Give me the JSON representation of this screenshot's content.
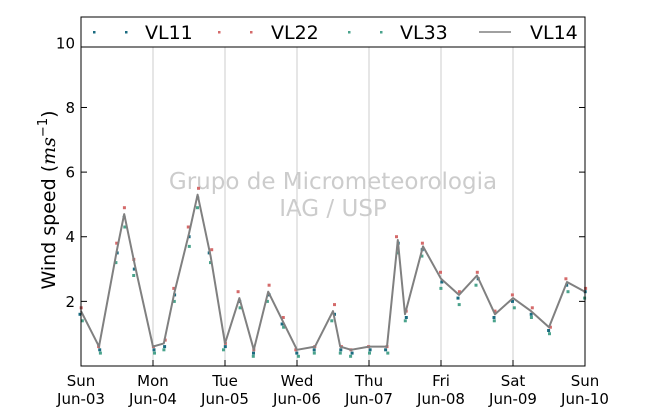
{
  "chart_data": {
    "type": "scatter",
    "title": "",
    "ylabel": "Wind speed (m s⁻¹)",
    "ylabel_text": "Wind speed (",
    "ylabel_unit_base": "ms",
    "ylabel_unit_exp": "−1",
    "ylabel_close": ")",
    "xlabel": "",
    "ylim": [
      0,
      10.8
    ],
    "xlim": [
      0,
      7
    ],
    "yticks": [
      2,
      4,
      6,
      8,
      10
    ],
    "ytick_labels": [
      "2",
      "4",
      "6",
      "8",
      "10"
    ],
    "xticks": [
      0,
      1,
      2,
      3,
      4,
      5,
      6,
      7
    ],
    "xtick_labels": [
      [
        "Sun",
        "Jun-03"
      ],
      [
        "Mon",
        "Jun-04"
      ],
      [
        "Tue",
        "Jun-05"
      ],
      [
        "Wed",
        "Jun-06"
      ],
      [
        "Thu",
        "Jun-07"
      ],
      [
        "Fri",
        "Jun-08"
      ],
      [
        "Sat",
        "Jun-09"
      ],
      [
        "Sun",
        "Jun-10"
      ]
    ],
    "grid": "vertical",
    "legend_position": "top",
    "watermark": [
      "Grupo de Micrometeorologia",
      "IAG / USP"
    ],
    "x": [
      0.0,
      0.25,
      0.5,
      0.6,
      0.75,
      1.0,
      1.15,
      1.3,
      1.5,
      1.62,
      1.8,
      2.0,
      2.2,
      2.4,
      2.6,
      2.8,
      3.0,
      3.25,
      3.5,
      3.6,
      3.75,
      4.0,
      4.25,
      4.4,
      4.5,
      4.75,
      5.0,
      5.25,
      5.5,
      5.75,
      6.0,
      6.25,
      6.5,
      6.75,
      7.0
    ],
    "series": [
      {
        "name": "VL11",
        "kind": "points",
        "color": "#1a6b80",
        "values": [
          1.6,
          0.5,
          3.5,
          4.6,
          3.0,
          0.5,
          0.6,
          2.2,
          4.0,
          5.2,
          3.5,
          0.6,
          2.0,
          0.4,
          2.2,
          1.3,
          0.4,
          0.5,
          1.6,
          0.5,
          0.4,
          0.5,
          0.5,
          3.8,
          1.5,
          3.6,
          2.6,
          2.1,
          2.7,
          1.5,
          2.0,
          1.6,
          1.1,
          2.5,
          2.3
        ]
      },
      {
        "name": "VL22",
        "kind": "points",
        "color": "#d46a6a",
        "values": [
          1.8,
          0.6,
          3.8,
          4.9,
          3.3,
          0.6,
          0.8,
          2.4,
          4.3,
          5.5,
          3.6,
          0.7,
          2.3,
          0.5,
          2.5,
          1.5,
          0.5,
          0.6,
          1.9,
          0.6,
          0.5,
          0.6,
          0.6,
          4.0,
          1.7,
          3.8,
          2.9,
          2.3,
          2.9,
          1.7,
          2.2,
          1.8,
          1.2,
          2.7,
          2.4
        ]
      },
      {
        "name": "VL33",
        "kind": "points",
        "color": "#4aa38c",
        "values": [
          1.4,
          0.4,
          3.2,
          4.3,
          2.8,
          0.4,
          0.5,
          2.0,
          3.7,
          4.9,
          3.2,
          0.5,
          1.8,
          0.3,
          2.0,
          1.2,
          0.3,
          0.4,
          1.4,
          0.4,
          0.3,
          0.4,
          0.4,
          3.5,
          1.4,
          3.4,
          2.4,
          1.9,
          2.5,
          1.4,
          1.8,
          1.5,
          1.0,
          2.3,
          2.1
        ]
      },
      {
        "name": "VL14",
        "kind": "line",
        "color": "#808080",
        "values": [
          1.7,
          0.6,
          3.6,
          4.7,
          3.1,
          0.6,
          0.7,
          2.3,
          4.1,
          5.3,
          3.4,
          0.7,
          2.1,
          0.5,
          2.3,
          1.4,
          0.5,
          0.6,
          1.7,
          0.6,
          0.5,
          0.6,
          0.6,
          3.9,
          1.6,
          3.7,
          2.7,
          2.2,
          2.8,
          1.6,
          2.1,
          1.7,
          1.2,
          2.6,
          2.3
        ]
      }
    ]
  }
}
